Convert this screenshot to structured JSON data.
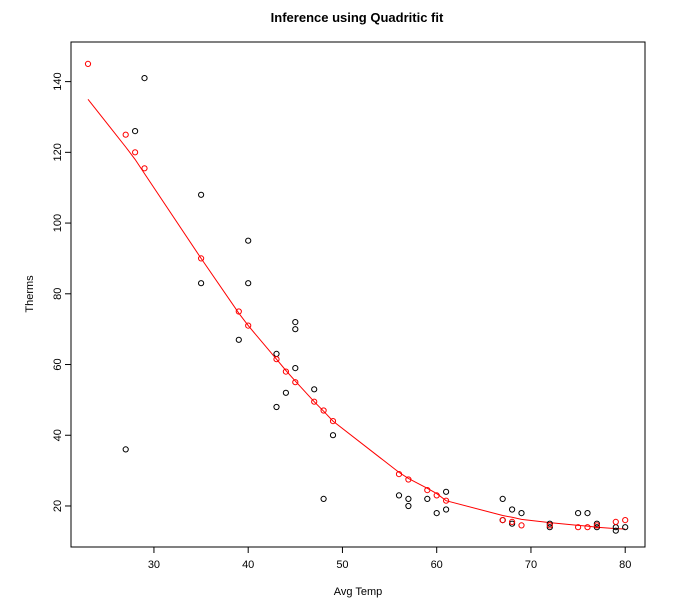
{
  "chart_data": {
    "type": "scatter",
    "title": "Inference using Quadritic fit",
    "xlabel": "Avg Temp",
    "ylabel": "Therms",
    "xlim": [
      21.2,
      82.1
    ],
    "ylim": [
      8.4,
      151.2
    ],
    "x_ticks": [
      30,
      40,
      50,
      60,
      70,
      80
    ],
    "y_ticks": [
      20,
      40,
      60,
      80,
      100,
      120,
      140
    ],
    "grid": false,
    "legend": "none",
    "colors": {
      "observed": "#000000",
      "fitted": "#ff0000"
    },
    "series": [
      {
        "kind": "points",
        "color": "#000000",
        "points": [
          [
            27,
            36
          ],
          [
            28,
            126
          ],
          [
            29,
            141
          ],
          [
            35,
            108
          ],
          [
            35,
            83
          ],
          [
            39,
            67
          ],
          [
            40,
            95
          ],
          [
            40,
            83
          ],
          [
            43,
            63
          ],
          [
            43,
            48
          ],
          [
            44,
            52
          ],
          [
            45,
            72
          ],
          [
            45,
            70
          ],
          [
            45,
            59
          ],
          [
            47,
            53
          ],
          [
            48,
            22
          ],
          [
            49,
            40
          ],
          [
            56,
            23
          ],
          [
            57,
            22
          ],
          [
            57,
            20
          ],
          [
            59,
            22
          ],
          [
            60,
            18
          ],
          [
            61,
            24
          ],
          [
            61,
            19
          ],
          [
            67,
            22
          ],
          [
            67,
            16
          ],
          [
            68,
            19
          ],
          [
            68,
            15
          ],
          [
            69,
            18
          ],
          [
            72,
            15
          ],
          [
            72,
            14
          ],
          [
            75,
            18
          ],
          [
            76,
            18
          ],
          [
            77,
            15
          ],
          [
            77,
            14
          ],
          [
            79,
            13
          ],
          [
            79,
            14
          ],
          [
            80,
            14
          ]
        ]
      },
      {
        "kind": "points",
        "color": "#ff0000",
        "points": [
          [
            23,
            145
          ],
          [
            27,
            125
          ],
          [
            28,
            120
          ],
          [
            29,
            115.5
          ],
          [
            35,
            90
          ],
          [
            39,
            75
          ],
          [
            40,
            71
          ],
          [
            43,
            61.5
          ],
          [
            44,
            58
          ],
          [
            45,
            55
          ],
          [
            47,
            49.5
          ],
          [
            48,
            47
          ],
          [
            49,
            44
          ],
          [
            56,
            29
          ],
          [
            57,
            27.5
          ],
          [
            59,
            24.5
          ],
          [
            60,
            23
          ],
          [
            61,
            21.5
          ],
          [
            67,
            16
          ],
          [
            68,
            15.5
          ],
          [
            69,
            14.5
          ],
          [
            72,
            14.5
          ],
          [
            75,
            14
          ],
          [
            76,
            14
          ],
          [
            77,
            14.5
          ],
          [
            79,
            15.5
          ],
          [
            80,
            16
          ]
        ]
      },
      {
        "kind": "line",
        "color": "#ff0000",
        "points": [
          [
            23,
            135
          ],
          [
            27,
            121.5
          ],
          [
            28,
            118
          ],
          [
            29,
            114
          ],
          [
            35,
            90
          ],
          [
            39,
            74.5
          ],
          [
            40,
            71
          ],
          [
            43,
            61.5
          ],
          [
            44,
            58.3
          ],
          [
            45,
            55.3
          ],
          [
            47,
            49.5
          ],
          [
            48,
            46.8
          ],
          [
            49,
            44
          ],
          [
            56,
            29.5
          ],
          [
            57,
            27.8
          ],
          [
            59,
            25
          ],
          [
            60,
            23.5
          ],
          [
            61,
            21.5
          ],
          [
            67,
            17.3
          ],
          [
            68,
            16.8
          ],
          [
            69,
            16.2
          ],
          [
            72,
            15.3
          ],
          [
            75,
            14.5
          ],
          [
            76,
            14.3
          ],
          [
            77,
            14
          ],
          [
            79,
            13.6
          ],
          [
            80,
            13.5
          ]
        ]
      }
    ]
  }
}
